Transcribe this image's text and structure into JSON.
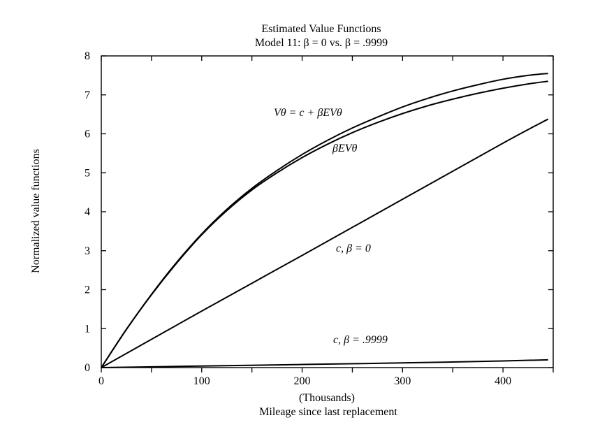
{
  "chart_data": {
    "type": "line",
    "title": "Estimated Value Functions",
    "subtitle": "Model 11: β = 0 vs. β = .9999",
    "xlabel_units": "(Thousands)",
    "xlabel": "Mileage since last replacement",
    "ylabel": "Normalized value functions",
    "xlim": [
      0,
      450
    ],
    "ylim": [
      0,
      8
    ],
    "xticks": [
      0,
      100,
      200,
      300,
      400
    ],
    "yticks": [
      0,
      1,
      2,
      3,
      4,
      5,
      6,
      7,
      8
    ],
    "grid": false,
    "legend": "none",
    "series": [
      {
        "label_text": "Vθ = c + βEVθ",
        "x": [
          0,
          25,
          50,
          75,
          100,
          125,
          150,
          175,
          200,
          225,
          250,
          275,
          300,
          325,
          350,
          375,
          400,
          425,
          445
        ],
        "y": [
          0,
          0.98,
          1.88,
          2.7,
          3.43,
          4.06,
          4.6,
          5.06,
          5.47,
          5.83,
          6.15,
          6.43,
          6.69,
          6.91,
          7.1,
          7.26,
          7.4,
          7.5,
          7.55
        ]
      },
      {
        "label_text": "βEVθ",
        "x": [
          0,
          25,
          50,
          75,
          100,
          125,
          150,
          175,
          200,
          225,
          250,
          275,
          300,
          325,
          350,
          375,
          400,
          425,
          445
        ],
        "y": [
          0,
          0.98,
          1.87,
          2.68,
          3.41,
          4.03,
          4.56,
          5.0,
          5.39,
          5.73,
          6.03,
          6.29,
          6.52,
          6.72,
          6.89,
          7.04,
          7.17,
          7.28,
          7.35
        ]
      },
      {
        "label_text": "c, β = 0",
        "x": [
          0,
          100,
          200,
          300,
          400,
          445
        ],
        "y": [
          0,
          1.45,
          2.88,
          4.32,
          5.76,
          6.38
        ]
      },
      {
        "label_text": "c, β = .9999",
        "x": [
          0,
          100,
          200,
          300,
          400,
          445
        ],
        "y": [
          0,
          0.04,
          0.08,
          0.12,
          0.17,
          0.2
        ]
      }
    ]
  }
}
